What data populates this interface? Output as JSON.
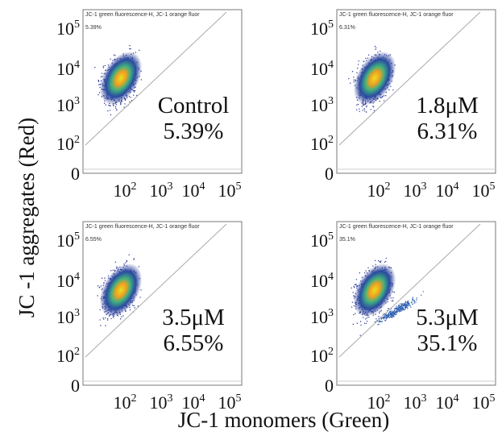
{
  "y_axis_label": "JC -1 aggregates (Red)",
  "x_axis_label": "JC-1 monomers (Green)",
  "y_tick_labels": [
    {
      "base": "10",
      "exp": "5"
    },
    {
      "base": "10",
      "exp": "4"
    },
    {
      "base": "10",
      "exp": "3"
    },
    {
      "base": "10",
      "exp": "2"
    },
    {
      "base": "0"
    }
  ],
  "x_tick_labels": [
    {
      "base": "10",
      "exp": "2"
    },
    {
      "base": "10",
      "exp": "3"
    },
    {
      "base": "10",
      "exp": "4"
    },
    {
      "base": "10",
      "exp": "5"
    }
  ],
  "panels": [
    {
      "header": "JC-1 green fluorescence-H, JC-1 orange fluor",
      "gate_percent": "5.39%",
      "label": "Control",
      "percent": "5.39%"
    },
    {
      "header": "JC-1 green fluorescence-H, JC-1 orange fluor",
      "gate_percent": "6.31%",
      "label": "1.8μM",
      "percent": "6.31%"
    },
    {
      "header": "JC-1 green fluorescence-H, JC-1 orange fluor",
      "gate_percent": "6.55%",
      "label": "3.5μM",
      "percent": "6.55%"
    },
    {
      "header": "JC-1 green fluorescence-H, JC-1 orange fluor",
      "gate_percent": "35.1%",
      "label": "5.3μM",
      "percent": "35.1%"
    }
  ]
}
